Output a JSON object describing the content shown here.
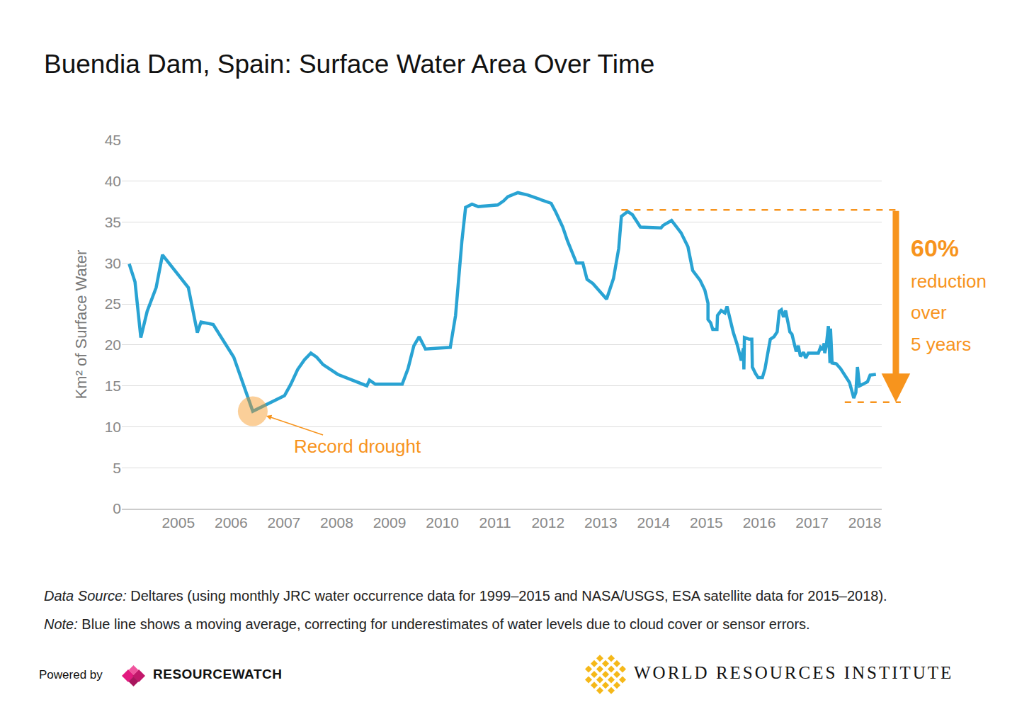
{
  "chart_data": {
    "type": "line",
    "title": "Buendia Dam, Spain: Surface Water Area Over Time",
    "y_label": "Km² of Surface Water",
    "color": "#29a3d3",
    "x": [
      2004.07,
      2004.18,
      2004.29,
      2004.41,
      2004.58,
      2004.7,
      2005.19,
      2005.36,
      2005.43,
      2005.66,
      2006.05,
      2006.41,
      2007.01,
      2007.13,
      2007.26,
      2007.39,
      2007.51,
      2007.62,
      2007.74,
      2008.02,
      2008.57,
      2008.62,
      2008.73,
      2009.24,
      2009.35,
      2009.46,
      2009.56,
      2009.68,
      2010.15,
      2010.25,
      2010.37,
      2010.44,
      2010.56,
      2010.68,
      2011.05,
      2011.16,
      2011.24,
      2011.43,
      2011.62,
      2011.78,
      2012.06,
      2012.15,
      2012.28,
      2012.37,
      2012.49,
      2012.54,
      2012.66,
      2012.74,
      2012.85,
      2013.11,
      2013.24,
      2013.34,
      2013.39,
      2013.51,
      2013.6,
      2013.75,
      2014.14,
      2014.18,
      2014.34,
      2014.52,
      2014.65,
      2014.74,
      2014.88,
      2014.97,
      2015.03,
      2015.03,
      2015.08,
      2015.12,
      2015.2,
      2015.21,
      2015.28,
      2015.35,
      2015.39,
      2015.46,
      2015.51,
      2015.58,
      2015.63,
      2015.66,
      2015.7,
      2015.71,
      2015.72,
      2015.81,
      2015.86,
      2015.87,
      2015.93,
      2015.98,
      2016.06,
      2016.11,
      2016.14,
      2016.21,
      2016.28,
      2016.34,
      2016.38,
      2016.42,
      2016.46,
      2016.5,
      2016.54,
      2016.58,
      2016.62,
      2016.66,
      2016.7,
      2016.74,
      2016.78,
      2016.84,
      2016.88,
      2016.93,
      2017.03,
      2017.12,
      2017.16,
      2017.2,
      2017.23,
      2017.24,
      2017.27,
      2017.31,
      2017.34,
      2017.35,
      2017.38,
      2017.46,
      2017.54,
      2017.6,
      2017.67,
      2017.71,
      2017.77,
      2017.79,
      2017.83,
      2017.86,
      2017.9,
      2017.97,
      2018.05,
      2018.1,
      2018.21
    ],
    "values": [
      29.9,
      27.7,
      20.9,
      24.1,
      27.0,
      31.0,
      27.0,
      21.5,
      22.8,
      22.5,
      18.5,
      11.9,
      13.8,
      15.2,
      17.0,
      18.2,
      19.0,
      18.5,
      17.6,
      16.4,
      15.0,
      15.7,
      15.2,
      15.2,
      17.1,
      19.9,
      21.0,
      19.5,
      19.7,
      23.6,
      32.7,
      36.8,
      37.2,
      36.9,
      37.1,
      37.6,
      38.1,
      38.6,
      38.3,
      37.9,
      37.3,
      36.2,
      34.4,
      32.7,
      30.8,
      30.0,
      30.0,
      28.0,
      27.5,
      25.6,
      28.1,
      31.8,
      35.7,
      36.3,
      35.9,
      34.4,
      34.3,
      34.6,
      35.2,
      33.7,
      32.0,
      29.1,
      27.9,
      26.7,
      25.1,
      23.1,
      22.7,
      21.9,
      21.9,
      23.6,
      24.2,
      23.9,
      24.7,
      22.6,
      21.5,
      20.1,
      18.9,
      18.1,
      19.6,
      17.0,
      20.9,
      20.7,
      20.7,
      17.3,
      16.5,
      16.0,
      16.0,
      17.1,
      18.2,
      20.7,
      21.0,
      21.6,
      24.1,
      24.3,
      23.4,
      24.2,
      22.9,
      21.6,
      21.3,
      20.0,
      19.2,
      19.9,
      18.6,
      19.1,
      18.4,
      19.0,
      19.0,
      19.0,
      19.7,
      19.4,
      20.2,
      19.0,
      19.9,
      22.3,
      17.8,
      22.0,
      17.8,
      17.7,
      17.1,
      16.5,
      15.8,
      15.4,
      14.0,
      13.5,
      14.2,
      17.3,
      15.0,
      15.2,
      15.5,
      16.3,
      16.4
    ],
    "xlim": [
      2003.93,
      2018.32
    ],
    "xticks": [
      2005,
      2006,
      2007,
      2008,
      2009,
      2010,
      2011,
      2012,
      2013,
      2014,
      2015,
      2016,
      2017,
      2018
    ],
    "ylim": [
      0,
      45
    ],
    "yticks": [
      0,
      5,
      10,
      15,
      20,
      25,
      30,
      35,
      40,
      45
    ],
    "grid": true,
    "annotations": [
      {
        "text": "Record drought",
        "x": 2006.41,
        "y": 11.9
      }
    ],
    "callout": {
      "value_label": "60%",
      "text": [
        "reduction",
        "over",
        "5 years"
      ],
      "high": 36.5,
      "low": 13.0,
      "high_from": 2013.39,
      "low_from": 2017.62
    },
    "source": {
      "label": "Data Source:",
      "text": "Deltares (using monthly JRC water occurrence data for 1999–2015 and NASA/USGS, ESA satellite data for 2015–2018)."
    },
    "note": {
      "label": "Note:",
      "text": "Blue line shows a moving average, correcting for underestimates of water levels due to cloud cover or sensor errors."
    },
    "credits": {
      "powered_by": "Powered by",
      "resourcewatch": "RESOURCEWATCH",
      "wri": "WORLD RESOURCES INSTITUTE"
    }
  }
}
